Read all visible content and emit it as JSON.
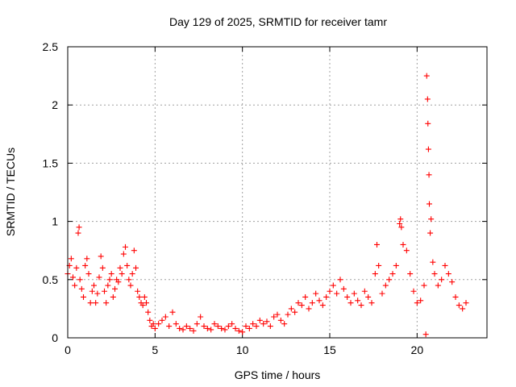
{
  "chart_data": {
    "type": "scatter",
    "title": "Day 129 of 2025, SRMTID for receiver tamr",
    "xlabel": "GPS time / hours",
    "ylabel": "SRMTID / TECUs",
    "xlim": [
      0,
      24
    ],
    "ylim": [
      0,
      2.5
    ],
    "xticks": [
      0,
      5,
      10,
      15,
      20
    ],
    "xtick_labels": [
      "0",
      "5",
      "10",
      "15",
      "20"
    ],
    "yticks": [
      0,
      0.5,
      1,
      1.5,
      2,
      2.5
    ],
    "ytick_labels": [
      "0",
      "0.5",
      "1",
      "1.5",
      "2",
      "2.5"
    ],
    "grid": true,
    "marker": "+",
    "color": "#ff0000",
    "series": [
      {
        "name": "SRMTID",
        "points": [
          [
            0.0,
            0.55
          ],
          [
            0.1,
            0.62
          ],
          [
            0.2,
            0.68
          ],
          [
            0.3,
            0.52
          ],
          [
            0.4,
            0.45
          ],
          [
            0.5,
            0.6
          ],
          [
            0.6,
            0.9
          ],
          [
            0.65,
            0.95
          ],
          [
            0.7,
            0.5
          ],
          [
            0.8,
            0.42
          ],
          [
            0.9,
            0.35
          ],
          [
            1.0,
            0.62
          ],
          [
            1.1,
            0.68
          ],
          [
            1.2,
            0.55
          ],
          [
            1.3,
            0.3
          ],
          [
            1.4,
            0.4
          ],
          [
            1.5,
            0.45
          ],
          [
            1.6,
            0.3
          ],
          [
            1.7,
            0.38
          ],
          [
            1.8,
            0.52
          ],
          [
            1.9,
            0.7
          ],
          [
            2.0,
            0.6
          ],
          [
            2.1,
            0.4
          ],
          [
            2.2,
            0.3
          ],
          [
            2.3,
            0.45
          ],
          [
            2.4,
            0.5
          ],
          [
            2.5,
            0.55
          ],
          [
            2.6,
            0.35
          ],
          [
            2.7,
            0.42
          ],
          [
            2.8,
            0.5
          ],
          [
            2.9,
            0.48
          ],
          [
            3.0,
            0.6
          ],
          [
            3.1,
            0.55
          ],
          [
            3.2,
            0.72
          ],
          [
            3.3,
            0.78
          ],
          [
            3.4,
            0.62
          ],
          [
            3.5,
            0.5
          ],
          [
            3.6,
            0.45
          ],
          [
            3.7,
            0.55
          ],
          [
            3.8,
            0.75
          ],
          [
            3.9,
            0.6
          ],
          [
            4.0,
            0.4
          ],
          [
            4.1,
            0.35
          ],
          [
            4.2,
            0.3
          ],
          [
            4.3,
            0.28
          ],
          [
            4.4,
            0.35
          ],
          [
            4.5,
            0.3
          ],
          [
            4.6,
            0.22
          ],
          [
            4.7,
            0.15
          ],
          [
            4.8,
            0.1
          ],
          [
            4.9,
            0.12
          ],
          [
            5.0,
            0.08
          ],
          [
            5.2,
            0.12
          ],
          [
            5.4,
            0.15
          ],
          [
            5.6,
            0.18
          ],
          [
            5.8,
            0.1
          ],
          [
            6.0,
            0.22
          ],
          [
            6.2,
            0.12
          ],
          [
            6.4,
            0.08
          ],
          [
            6.6,
            0.07
          ],
          [
            6.8,
            0.1
          ],
          [
            7.0,
            0.08
          ],
          [
            7.2,
            0.06
          ],
          [
            7.4,
            0.12
          ],
          [
            7.6,
            0.18
          ],
          [
            7.8,
            0.1
          ],
          [
            8.0,
            0.08
          ],
          [
            8.2,
            0.07
          ],
          [
            8.4,
            0.12
          ],
          [
            8.6,
            0.1
          ],
          [
            8.8,
            0.08
          ],
          [
            9.0,
            0.07
          ],
          [
            9.2,
            0.1
          ],
          [
            9.4,
            0.12
          ],
          [
            9.6,
            0.08
          ],
          [
            9.8,
            0.06
          ],
          [
            10.0,
            0.05
          ],
          [
            10.2,
            0.1
          ],
          [
            10.4,
            0.08
          ],
          [
            10.6,
            0.12
          ],
          [
            10.8,
            0.1
          ],
          [
            11.0,
            0.15
          ],
          [
            11.2,
            0.12
          ],
          [
            11.4,
            0.14
          ],
          [
            11.6,
            0.1
          ],
          [
            11.8,
            0.18
          ],
          [
            12.0,
            0.2
          ],
          [
            12.2,
            0.15
          ],
          [
            12.4,
            0.12
          ],
          [
            12.6,
            0.2
          ],
          [
            12.8,
            0.25
          ],
          [
            13.0,
            0.22
          ],
          [
            13.2,
            0.3
          ],
          [
            13.4,
            0.28
          ],
          [
            13.6,
            0.35
          ],
          [
            13.8,
            0.25
          ],
          [
            14.0,
            0.3
          ],
          [
            14.2,
            0.38
          ],
          [
            14.4,
            0.32
          ],
          [
            14.6,
            0.28
          ],
          [
            14.8,
            0.35
          ],
          [
            15.0,
            0.4
          ],
          [
            15.2,
            0.45
          ],
          [
            15.4,
            0.38
          ],
          [
            15.6,
            0.5
          ],
          [
            15.8,
            0.42
          ],
          [
            16.0,
            0.35
          ],
          [
            16.2,
            0.3
          ],
          [
            16.4,
            0.38
          ],
          [
            16.6,
            0.32
          ],
          [
            16.8,
            0.28
          ],
          [
            17.0,
            0.4
          ],
          [
            17.2,
            0.35
          ],
          [
            17.4,
            0.3
          ],
          [
            17.6,
            0.55
          ],
          [
            17.7,
            0.8
          ],
          [
            17.8,
            0.62
          ],
          [
            18.0,
            0.38
          ],
          [
            18.2,
            0.45
          ],
          [
            18.4,
            0.5
          ],
          [
            18.6,
            0.55
          ],
          [
            18.8,
            0.62
          ],
          [
            19.0,
            0.98
          ],
          [
            19.05,
            1.02
          ],
          [
            19.1,
            0.95
          ],
          [
            19.2,
            0.8
          ],
          [
            19.4,
            0.75
          ],
          [
            19.6,
            0.55
          ],
          [
            19.8,
            0.4
          ],
          [
            20.0,
            0.3
          ],
          [
            20.2,
            0.32
          ],
          [
            20.4,
            0.45
          ],
          [
            20.5,
            0.03
          ],
          [
            20.55,
            2.25
          ],
          [
            20.6,
            2.05
          ],
          [
            20.62,
            1.84
          ],
          [
            20.65,
            1.62
          ],
          [
            20.68,
            1.4
          ],
          [
            20.7,
            1.15
          ],
          [
            20.75,
            0.9
          ],
          [
            20.8,
            1.02
          ],
          [
            20.9,
            0.65
          ],
          [
            21.0,
            0.55
          ],
          [
            21.2,
            0.45
          ],
          [
            21.4,
            0.5
          ],
          [
            21.6,
            0.62
          ],
          [
            21.8,
            0.55
          ],
          [
            22.0,
            0.48
          ],
          [
            22.2,
            0.35
          ],
          [
            22.4,
            0.28
          ],
          [
            22.6,
            0.25
          ],
          [
            22.8,
            0.3
          ]
        ]
      }
    ]
  }
}
